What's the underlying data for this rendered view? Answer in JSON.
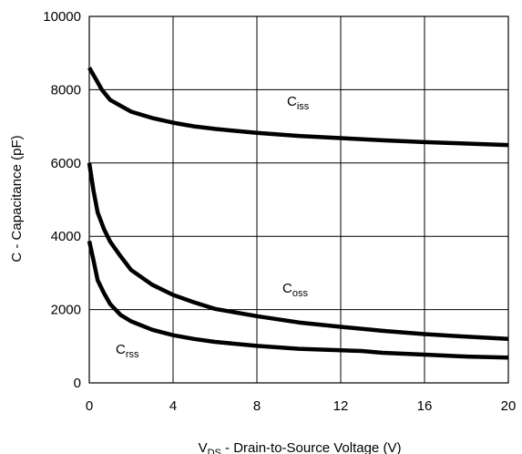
{
  "chart_data": {
    "type": "line",
    "xlabel": {
      "main": "V",
      "sub": "DS",
      "rest": " - Drain-to-Source Voltage (V)"
    },
    "ylabel": "C - Capacitance (pF)",
    "xlim": [
      0,
      20
    ],
    "ylim": [
      0,
      10000
    ],
    "xticks": [
      0,
      4,
      8,
      12,
      16,
      20
    ],
    "yticks": [
      0,
      2000,
      4000,
      6000,
      8000,
      10000
    ],
    "grid": true,
    "series": [
      {
        "name": "Ciss",
        "label": {
          "main": "C",
          "sub": "iss"
        },
        "x": [
          0,
          0.3,
          0.6,
          1,
          2,
          3,
          4,
          5,
          6,
          8,
          10,
          12,
          14,
          16,
          18,
          20
        ],
        "y": [
          8600,
          8300,
          8000,
          7720,
          7400,
          7230,
          7100,
          7000,
          6930,
          6820,
          6740,
          6680,
          6620,
          6570,
          6530,
          6490
        ]
      },
      {
        "name": "Coss",
        "label": {
          "main": "C",
          "sub": "oss"
        },
        "x": [
          0,
          0.2,
          0.4,
          0.7,
          1,
          1.5,
          2,
          3,
          4,
          5,
          6,
          8,
          10,
          12,
          14,
          16,
          18,
          20
        ],
        "y": [
          6000,
          5250,
          4650,
          4200,
          3850,
          3450,
          3080,
          2680,
          2400,
          2200,
          2020,
          1820,
          1650,
          1530,
          1420,
          1330,
          1260,
          1200
        ]
      },
      {
        "name": "Crss",
        "label": {
          "main": "C",
          "sub": "rss"
        },
        "x": [
          0,
          0.2,
          0.4,
          0.7,
          1,
          1.5,
          2,
          3,
          4,
          5,
          6,
          8,
          10,
          13,
          14,
          16,
          18,
          20
        ],
        "y": [
          3870,
          3350,
          2800,
          2450,
          2150,
          1850,
          1680,
          1450,
          1300,
          1200,
          1120,
          1010,
          930,
          870,
          820,
          770,
          720,
          690
        ]
      }
    ]
  }
}
